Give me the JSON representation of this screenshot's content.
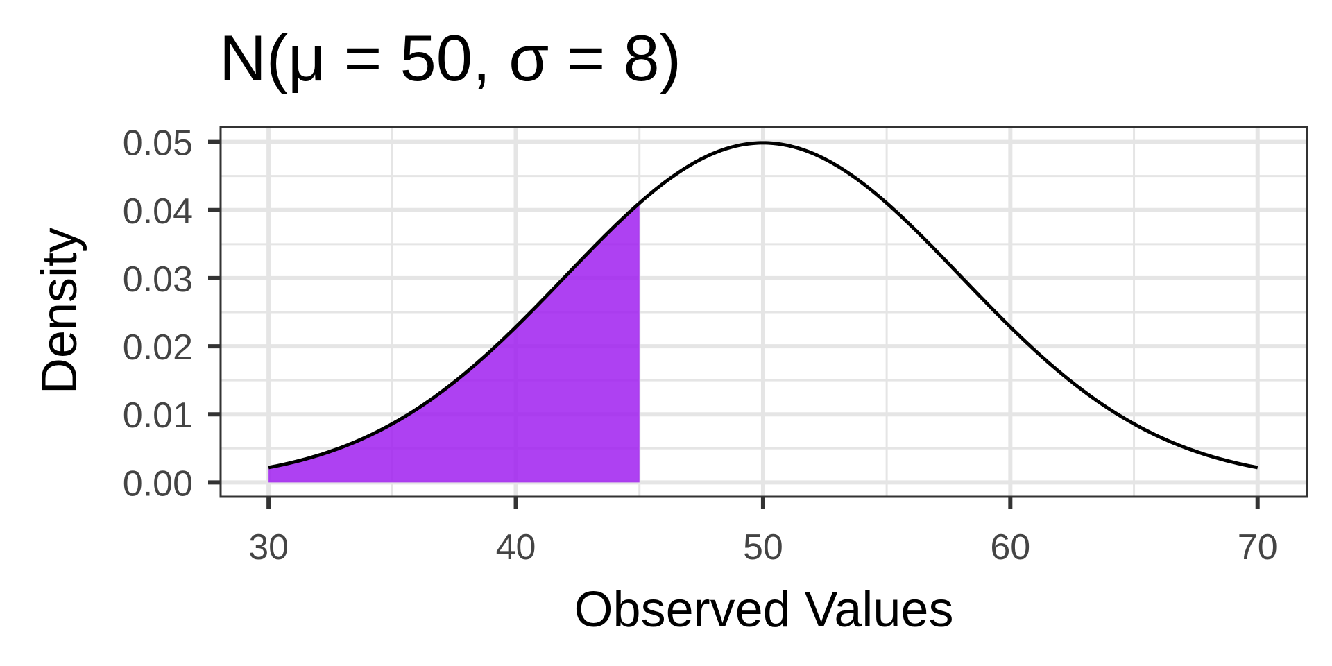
{
  "chart_data": {
    "type": "area",
    "title": "N(μ = 50, σ = 8)",
    "xlabel": "Observed Values",
    "ylabel": "Density",
    "distribution": {
      "family": "normal",
      "mean": 50,
      "sd": 8
    },
    "x_range": [
      30,
      70
    ],
    "xlim": [
      28.06,
      72.0
    ],
    "ylim": [
      -0.0021,
      0.0522
    ],
    "x_ticks": [
      30,
      40,
      50,
      60,
      70
    ],
    "x_tick_labels": [
      "30",
      "40",
      "50",
      "60",
      "70"
    ],
    "y_ticks": [
      0.0,
      0.01,
      0.02,
      0.03,
      0.04,
      0.05
    ],
    "y_tick_labels": [
      "0.00",
      "0.01",
      "0.02",
      "0.03",
      "0.04",
      "0.05"
    ],
    "x_minor_ticks": [
      35,
      45,
      55,
      65
    ],
    "y_minor_ticks": [
      0.005,
      0.015,
      0.025,
      0.035,
      0.045
    ],
    "shaded_region": {
      "from": 30,
      "to": 45,
      "color": "#a020f0"
    },
    "grid": true,
    "legend": "none",
    "colors": {
      "curve": "#000000",
      "shade": "#a020f0",
      "grid": "#e5e5e5",
      "panel_border": "#333333",
      "tick_label": "#444444"
    }
  }
}
